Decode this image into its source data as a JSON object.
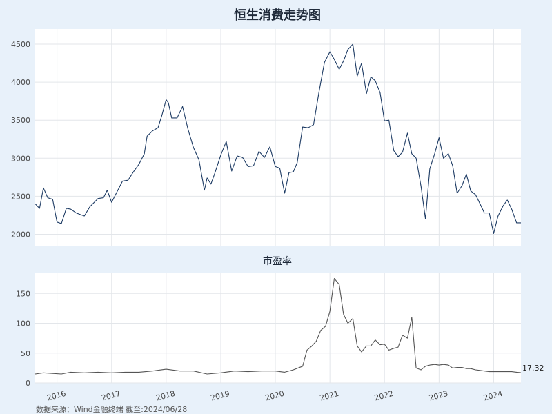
{
  "chart_data": [
    {
      "type": "line",
      "title": "恒生消费走势图",
      "ylim": [
        1850,
        4700
      ],
      "yticks": [
        2000,
        2500,
        3000,
        3500,
        4000,
        4500
      ],
      "x_range": [
        2015.6,
        2024.5
      ],
      "grid": true,
      "color": "#1c3a63",
      "series": [
        {
          "x": [
            2015.6,
            2015.68,
            2015.75,
            2015.83,
            2015.92,
            2016.0,
            2016.08,
            2016.17,
            2016.25,
            2016.35,
            2016.5,
            2016.6,
            2016.75,
            2016.85,
            2016.92,
            2017.0,
            2017.1,
            2017.2,
            2017.3,
            2017.4,
            2017.5,
            2017.6,
            2017.65,
            2017.75,
            2017.85,
            2017.92,
            2018.0,
            2018.04,
            2018.1,
            2018.2,
            2018.3,
            2018.4,
            2018.5,
            2018.6,
            2018.7,
            2018.75,
            2018.82,
            2018.9,
            2019.0,
            2019.1,
            2019.2,
            2019.3,
            2019.4,
            2019.5,
            2019.6,
            2019.7,
            2019.8,
            2019.9,
            2020.0,
            2020.08,
            2020.17,
            2020.25,
            2020.33,
            2020.4,
            2020.5,
            2020.6,
            2020.7,
            2020.8,
            2020.9,
            2021.0,
            2021.08,
            2021.17,
            2021.25,
            2021.33,
            2021.42,
            2021.5,
            2021.58,
            2021.67,
            2021.75,
            2021.83,
            2021.92,
            2022.0,
            2022.08,
            2022.17,
            2022.25,
            2022.33,
            2022.42,
            2022.5,
            2022.58,
            2022.67,
            2022.75,
            2022.83,
            2022.92,
            2023.0,
            2023.08,
            2023.17,
            2023.25,
            2023.33,
            2023.42,
            2023.5,
            2023.58,
            2023.67,
            2023.75,
            2023.83,
            2023.92,
            2024.0,
            2024.08,
            2024.17,
            2024.25,
            2024.33,
            2024.42,
            2024.5
          ],
          "y": [
            2400,
            2340,
            2610,
            2480,
            2460,
            2160,
            2140,
            2340,
            2330,
            2280,
            2240,
            2360,
            2470,
            2480,
            2580,
            2420,
            2560,
            2700,
            2710,
            2820,
            2920,
            3060,
            3290,
            3360,
            3400,
            3560,
            3770,
            3730,
            3530,
            3530,
            3680,
            3380,
            3140,
            2980,
            2580,
            2740,
            2660,
            2820,
            3040,
            3220,
            2830,
            3030,
            3010,
            2890,
            2900,
            3090,
            3010,
            3150,
            2890,
            2870,
            2540,
            2810,
            2820,
            2940,
            3410,
            3400,
            3440,
            3870,
            4260,
            4400,
            4300,
            4170,
            4280,
            4430,
            4500,
            4080,
            4250,
            3850,
            4070,
            4020,
            3860,
            3490,
            3500,
            3100,
            3020,
            3080,
            3330,
            3060,
            3000,
            2630,
            2200,
            2860,
            3060,
            3270,
            3000,
            3060,
            2900,
            2540,
            2640,
            2790,
            2570,
            2520,
            2400,
            2280,
            2280,
            2010,
            2240,
            2370,
            2450,
            2330,
            2150,
            2150
          ]
        }
      ]
    },
    {
      "type": "line",
      "title": "市盈率",
      "ylim": [
        0,
        185
      ],
      "yticks": [
        0,
        50,
        100,
        150
      ],
      "xtick_labels": [
        "2016",
        "2017",
        "2018",
        "2019",
        "2020",
        "2021",
        "2022",
        "2023",
        "2024"
      ],
      "x_range": [
        2015.6,
        2024.5
      ],
      "grid": true,
      "color": "#555555",
      "last_value_label": "17.32",
      "series": [
        {
          "x": [
            2015.6,
            2015.75,
            2015.92,
            2016.08,
            2016.25,
            2016.5,
            2016.75,
            2017.0,
            2017.25,
            2017.5,
            2017.75,
            2018.0,
            2018.25,
            2018.5,
            2018.75,
            2019.0,
            2019.25,
            2019.5,
            2019.75,
            2020.0,
            2020.17,
            2020.33,
            2020.5,
            2020.58,
            2020.67,
            2020.75,
            2020.83,
            2020.92,
            2021.0,
            2021.08,
            2021.17,
            2021.25,
            2021.33,
            2021.42,
            2021.5,
            2021.58,
            2021.67,
            2021.75,
            2021.83,
            2021.92,
            2022.0,
            2022.08,
            2022.17,
            2022.25,
            2022.33,
            2022.42,
            2022.5,
            2022.58,
            2022.67,
            2022.75,
            2022.83,
            2022.92,
            2023.0,
            2023.08,
            2023.17,
            2023.25,
            2023.33,
            2023.42,
            2023.5,
            2023.58,
            2023.67,
            2023.75,
            2023.83,
            2023.92,
            2024.0,
            2024.08,
            2024.17,
            2024.25,
            2024.33,
            2024.42,
            2024.5
          ],
          "y": [
            15,
            17,
            16,
            15,
            18,
            17,
            18,
            17,
            18,
            18,
            20,
            23,
            20,
            20,
            15,
            17,
            20,
            19,
            20,
            20,
            18,
            22,
            28,
            55,
            62,
            70,
            88,
            95,
            120,
            175,
            165,
            115,
            100,
            108,
            62,
            52,
            62,
            62,
            72,
            64,
            65,
            55,
            58,
            60,
            80,
            75,
            110,
            25,
            22,
            28,
            30,
            31,
            30,
            31,
            30,
            25,
            26,
            26,
            24,
            24,
            22,
            21,
            20,
            19,
            19,
            19,
            19,
            19,
            19,
            18,
            17.32
          ]
        }
      ]
    }
  ],
  "footer": {
    "source": "数据来源：Wind金融终端 截至:2024/06/28"
  }
}
